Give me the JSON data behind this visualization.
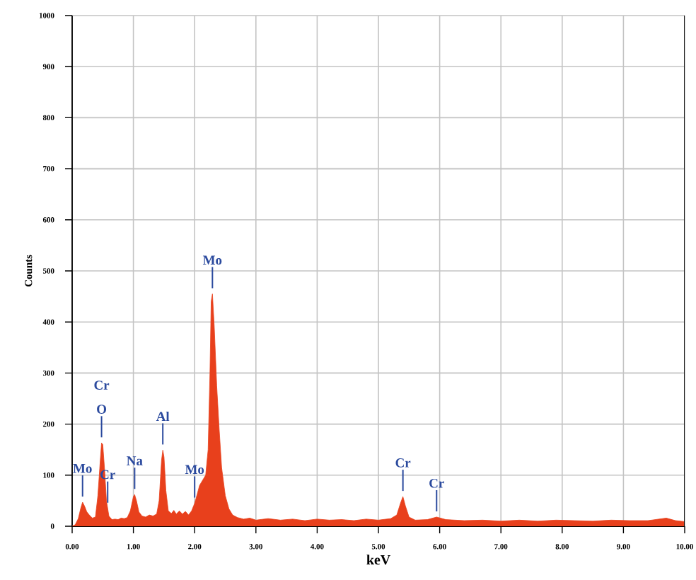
{
  "chart_data": {
    "type": "area",
    "xlabel": "keV",
    "ylabel": "Counts",
    "color": "#e8401c",
    "x": [
      0.0,
      0.05,
      0.1,
      0.14,
      0.17,
      0.2,
      0.24,
      0.28,
      0.33,
      0.38,
      0.42,
      0.46,
      0.48,
      0.5,
      0.53,
      0.56,
      0.6,
      0.65,
      0.7,
      0.75,
      0.8,
      0.85,
      0.9,
      0.95,
      1.0,
      1.02,
      1.05,
      1.09,
      1.14,
      1.2,
      1.26,
      1.32,
      1.38,
      1.42,
      1.46,
      1.48,
      1.5,
      1.53,
      1.57,
      1.62,
      1.66,
      1.7,
      1.75,
      1.8,
      1.85,
      1.9,
      1.95,
      2.0,
      2.04,
      2.08,
      2.13,
      2.18,
      2.22,
      2.25,
      2.27,
      2.29,
      2.32,
      2.36,
      2.4,
      2.44,
      2.5,
      2.56,
      2.62,
      2.7,
      2.8,
      2.9,
      3.0,
      3.2,
      3.4,
      3.6,
      3.8,
      4.0,
      4.2,
      4.4,
      4.6,
      4.8,
      5.0,
      5.2,
      5.3,
      5.36,
      5.4,
      5.44,
      5.5,
      5.6,
      5.8,
      5.95,
      6.1,
      6.4,
      6.7,
      7.0,
      7.3,
      7.6,
      7.9,
      8.2,
      8.5,
      8.8,
      9.1,
      9.4,
      9.7,
      9.85,
      10.0
    ],
    "values": [
      0,
      3,
      15,
      35,
      47,
      40,
      28,
      22,
      16,
      18,
      60,
      130,
      163,
      160,
      110,
      50,
      20,
      13,
      14,
      13,
      16,
      15,
      17,
      30,
      58,
      62,
      50,
      28,
      20,
      18,
      22,
      20,
      24,
      50,
      130,
      149,
      135,
      70,
      30,
      25,
      31,
      24,
      30,
      24,
      29,
      22,
      30,
      45,
      62,
      80,
      90,
      100,
      150,
      300,
      440,
      455,
      390,
      275,
      190,
      115,
      60,
      34,
      22,
      17,
      14,
      16,
      12,
      15,
      12,
      14,
      11,
      14,
      12,
      13,
      11,
      14,
      12,
      15,
      22,
      45,
      58,
      40,
      18,
      12,
      13,
      18,
      13,
      11,
      12,
      10,
      12,
      10,
      12,
      11,
      10,
      12,
      11,
      11,
      16,
      11,
      9
    ],
    "xlim": [
      0,
      10
    ],
    "ylim": [
      0,
      1000
    ],
    "xticks": [
      {
        "value": 0,
        "label": "0.00"
      },
      {
        "value": 1,
        "label": "1.00"
      },
      {
        "value": 2,
        "label": "2.00"
      },
      {
        "value": 3,
        "label": "3.00"
      },
      {
        "value": 4,
        "label": "4.00"
      },
      {
        "value": 5,
        "label": "5.00"
      },
      {
        "value": 6,
        "label": "6.00"
      },
      {
        "value": 7,
        "label": "7.00"
      },
      {
        "value": 8,
        "label": "8.00"
      },
      {
        "value": 9,
        "label": "9.00"
      },
      {
        "value": 10,
        "label": "10.00"
      }
    ],
    "yticks": [
      0,
      100,
      200,
      300,
      400,
      500,
      600,
      700,
      800,
      900,
      1000
    ],
    "grid": true,
    "annotations": [
      {
        "text": "Mo",
        "x": 0.17,
        "y": 47
      },
      {
        "text": "O",
        "x": 0.48,
        "y": 163
      },
      "Cr",
      {
        "text": "Cr",
        "x": 0.58,
        "y": 35
      },
      {
        "text": "Na",
        "x": 1.02,
        "y": 62
      },
      {
        "text": "Al",
        "x": 1.48,
        "y": 149
      },
      {
        "text": "Mo",
        "x": 2.0,
        "y": 45
      },
      {
        "text": "Mo",
        "x": 2.29,
        "y": 455
      },
      {
        "text": "Cr",
        "x": 5.4,
        "y": 58
      },
      {
        "text": "Cr",
        "x": 5.95,
        "y": 18
      }
    ]
  }
}
